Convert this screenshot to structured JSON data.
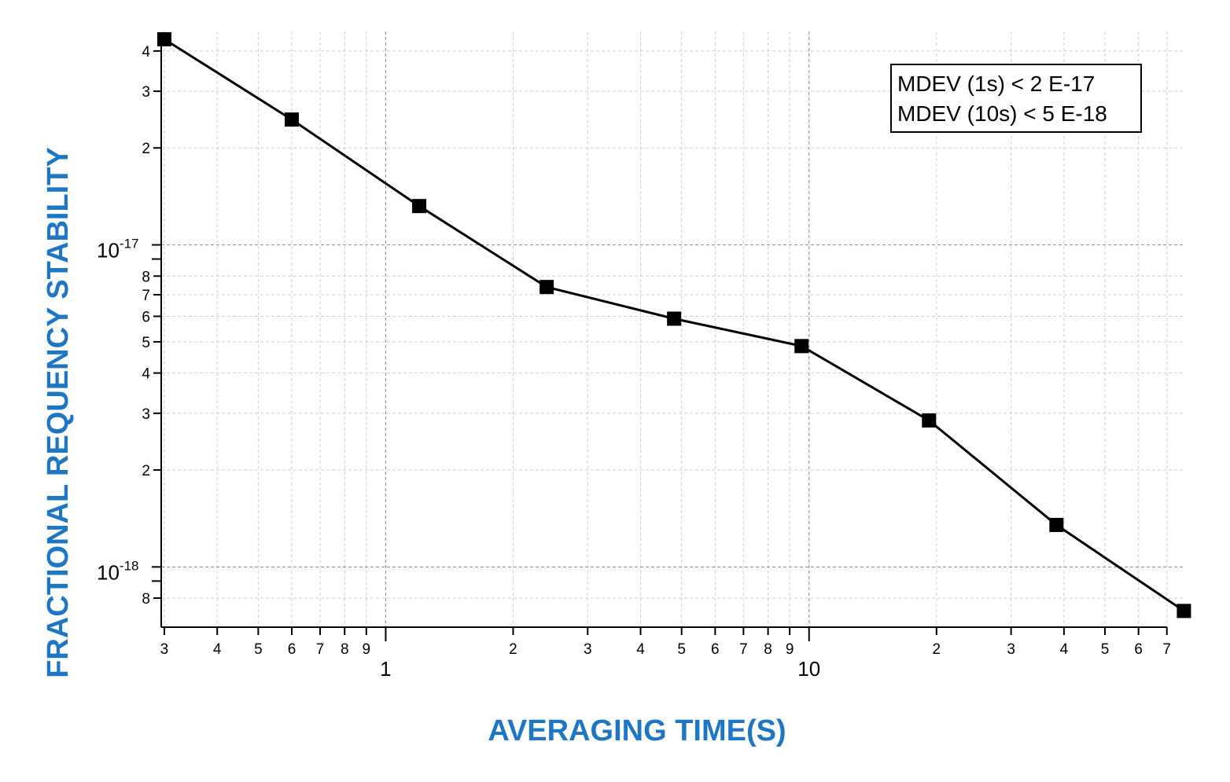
{
  "chart_data": {
    "type": "line",
    "title": "",
    "xlabel": "AVERAGING TIME(S)",
    "ylabel": "FRACTIONAL REQUENCY STABILITY",
    "xscale": "log",
    "yscale": "log",
    "xlim": [
      0.295,
      77
    ],
    "ylim": [
      6.5e-19,
      4.6e-17
    ],
    "grid": true,
    "legend": "none",
    "series": [
      {
        "x": [
          0.3,
          0.6,
          1.2,
          2.4,
          4.8,
          9.6,
          19.2,
          38.4,
          76.8
        ],
        "y": [
          4.35e-17,
          2.45e-17,
          1.32e-17,
          7.4e-18,
          5.9e-18,
          4.85e-18,
          2.85e-18,
          1.35e-18,
          7.3e-19
        ],
        "color": "#000000",
        "marker": "square"
      }
    ],
    "x_ticks": {
      "minor_labels": [
        {
          "value": 0.3,
          "label": "3"
        },
        {
          "value": 0.4,
          "label": "4"
        },
        {
          "value": 0.5,
          "label": "5"
        },
        {
          "value": 0.6,
          "label": "6"
        },
        {
          "value": 0.7,
          "label": "7"
        },
        {
          "value": 0.8,
          "label": "8"
        },
        {
          "value": 0.9,
          "label": "9"
        },
        {
          "value": 2,
          "label": "2"
        },
        {
          "value": 3,
          "label": "3"
        },
        {
          "value": 4,
          "label": "4"
        },
        {
          "value": 5,
          "label": "5"
        },
        {
          "value": 6,
          "label": "6"
        },
        {
          "value": 7,
          "label": "7"
        },
        {
          "value": 8,
          "label": "8"
        },
        {
          "value": 9,
          "label": "9"
        },
        {
          "value": 20,
          "label": "2"
        },
        {
          "value": 30,
          "label": "3"
        },
        {
          "value": 40,
          "label": "4"
        },
        {
          "value": 50,
          "label": "5"
        },
        {
          "value": 60,
          "label": "6"
        },
        {
          "value": 70,
          "label": "7"
        }
      ],
      "major_labels": [
        {
          "value": 1,
          "label": "1"
        },
        {
          "value": 10,
          "label": "10"
        }
      ]
    },
    "y_ticks": {
      "minor_labels": [
        {
          "value": 4e-17,
          "label": "4"
        },
        {
          "value": 3e-17,
          "label": "3"
        },
        {
          "value": 2e-17,
          "label": "2"
        },
        {
          "value": 8e-18,
          "label": "8"
        },
        {
          "value": 7e-18,
          "label": "7"
        },
        {
          "value": 6e-18,
          "label": "6"
        },
        {
          "value": 5e-18,
          "label": "5"
        },
        {
          "value": 4e-18,
          "label": "4"
        },
        {
          "value": 3e-18,
          "label": "3"
        },
        {
          "value": 2e-18,
          "label": "2"
        },
        {
          "value": 8e-19,
          "label": "8"
        }
      ],
      "major_labels": [
        {
          "value": 1e-17,
          "base": "10",
          "exponent": "-17"
        },
        {
          "value": 1e-18,
          "base": "10",
          "exponent": "-18"
        }
      ]
    },
    "annotation": {
      "lines": [
        "MDEV (1s) < 2 E-17",
        "MDEV (10s) < 5 E-18"
      ],
      "position": "top-right"
    }
  }
}
